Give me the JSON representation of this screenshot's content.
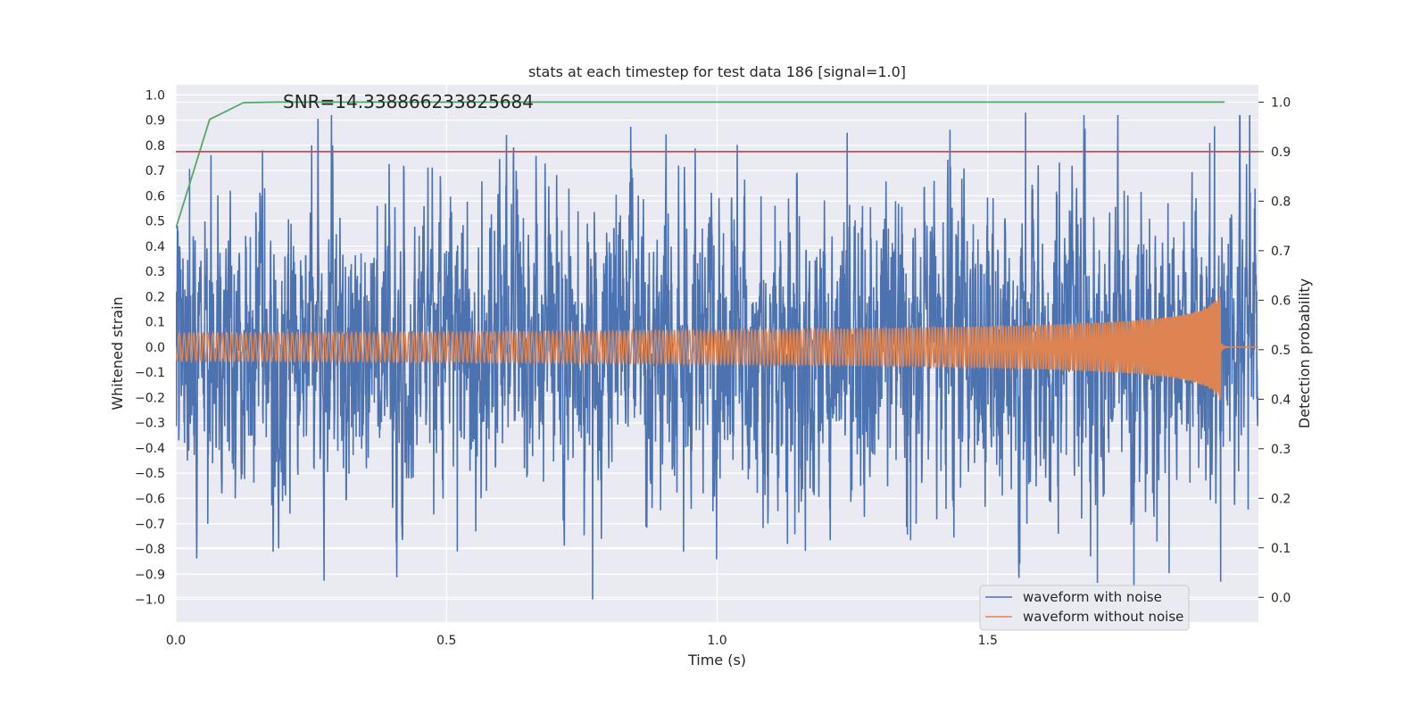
{
  "chart_data": {
    "type": "line",
    "title": "stats at each timestep for test data 186 [signal=1.0]",
    "annotation": "SNR=14.338866233825684",
    "xlabel": "Time (s)",
    "ylabel": "Whitened strain",
    "y2label": "Detection probability",
    "xlim": [
      0.0,
      2.0
    ],
    "ylim": [
      -1.09,
      1.04
    ],
    "y2lim": [
      -0.05,
      1.035
    ],
    "xticks": [
      0.0,
      0.5,
      1.0,
      1.5
    ],
    "xtick_labels": [
      "0.0",
      "0.5",
      "1.0",
      "1.5"
    ],
    "yticks": [
      -1.0,
      -0.9,
      -0.8,
      -0.7,
      -0.6,
      -0.5,
      -0.4,
      -0.3,
      -0.2,
      -0.1,
      0.0,
      0.1,
      0.2,
      0.3,
      0.4,
      0.5,
      0.6,
      0.7,
      0.8,
      0.9,
      1.0
    ],
    "ytick_labels": [
      "−1.0",
      "−0.9",
      "−0.8",
      "−0.7",
      "−0.6",
      "−0.5",
      "−0.4",
      "−0.3",
      "−0.2",
      "−0.1",
      "0.0",
      "0.1",
      "0.2",
      "0.3",
      "0.4",
      "0.5",
      "0.6",
      "0.7",
      "0.8",
      "0.9",
      "1.0"
    ],
    "y2ticks": [
      0.0,
      0.1,
      0.2,
      0.3,
      0.4,
      0.5,
      0.6,
      0.7,
      0.8,
      0.9,
      1.0
    ],
    "y2tick_labels": [
      "0.0",
      "0.1",
      "0.2",
      "0.3",
      "0.4",
      "0.5",
      "0.6",
      "0.7",
      "0.8",
      "0.9",
      "1.0"
    ],
    "grid": true,
    "legend": {
      "placement": "lower-right",
      "entries": [
        "waveform with noise",
        "waveform without noise"
      ]
    },
    "series": [
      {
        "name": "waveform with noise",
        "axis": "left",
        "color": "#4c72b0",
        "description_values": {
          "amplitude_range": [
            -1.0,
            0.93
          ],
          "typical_std": 0.28
        },
        "peaks": [
          [
            0.16,
            0.78
          ],
          [
            0.29,
            0.72
          ],
          [
            1.24,
            0.85
          ],
          [
            1.57,
            0.93
          ],
          [
            1.91,
            0.81
          ],
          [
            0.77,
            -1.0
          ],
          [
            1.77,
            -1.0
          ],
          [
            0.52,
            -0.81
          ],
          [
            1.13,
            -0.78
          ],
          [
            1.69,
            -0.83
          ],
          [
            1.93,
            -0.93
          ]
        ]
      },
      {
        "name": "waveform without noise",
        "axis": "left",
        "color": "#dd8452",
        "description_values": {
          "start_amplitude": 0.06,
          "peak_amplitude": 0.38,
          "peak_time": 1.93,
          "end_time": 2.0
        }
      },
      {
        "axis": "right",
        "color": "#55a868",
        "x": [
          0.0,
          0.0625,
          0.125,
          0.1875,
          0.25,
          0.5,
          1.0,
          1.5,
          1.9375
        ],
        "values": [
          0.745,
          0.965,
          0.999,
          1.0,
          1.0,
          1.0,
          1.0,
          1.0,
          1.0
        ]
      },
      {
        "axis": "right",
        "color": "#c44e52",
        "x": [
          0.0,
          2.0
        ],
        "values": [
          0.9,
          0.9
        ]
      }
    ]
  }
}
